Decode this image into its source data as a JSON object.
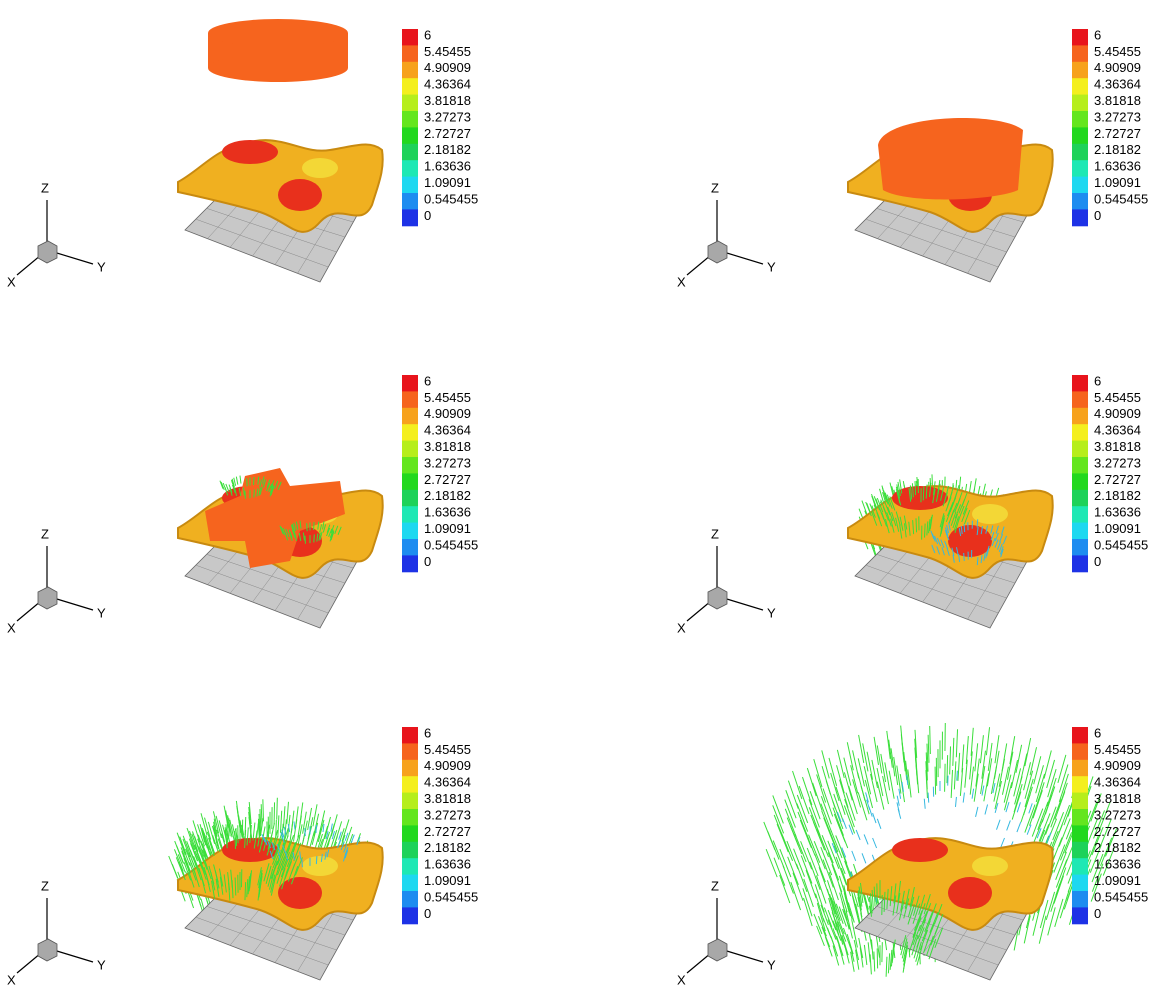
{
  "panels": [
    {
      "colorbar": {
        "labels": [
          6,
          5.45455,
          4.90909,
          4.36364,
          3.81818,
          3.27273,
          2.72727,
          2.18182,
          1.63636,
          1.09091,
          0.545455,
          0
        ],
        "colors": [
          "#e8141c",
          "#f6641e",
          "#f7a21c",
          "#f4ef1e",
          "#b6ee1c",
          "#64e61e",
          "#22d81e",
          "#1ed25a",
          "#1ee8b4",
          "#1ed8f0",
          "#1e8cf0",
          "#1e32e6"
        ]
      },
      "axes": {
        "x": "X",
        "y": "Y",
        "z": "Z"
      }
    },
    {
      "colorbar": {
        "labels": [
          6,
          5.45455,
          4.90909,
          4.36364,
          3.81818,
          3.27273,
          2.72727,
          2.18182,
          1.63636,
          1.09091,
          0.545455,
          0
        ],
        "colors": [
          "#e8141c",
          "#f6641e",
          "#f7a21c",
          "#f4ef1e",
          "#b6ee1c",
          "#64e61e",
          "#22d81e",
          "#1ed25a",
          "#1ee8b4",
          "#1ed8f0",
          "#1e8cf0",
          "#1e32e6"
        ]
      },
      "axes": {
        "x": "X",
        "y": "Y",
        "z": "Z"
      }
    },
    {
      "colorbar": {
        "labels": [
          6,
          5.45455,
          4.90909,
          4.36364,
          3.81818,
          3.27273,
          2.72727,
          2.18182,
          1.63636,
          1.09091,
          0.545455,
          0
        ],
        "colors": [
          "#e8141c",
          "#f6641e",
          "#f7a21c",
          "#f4ef1e",
          "#b6ee1c",
          "#64e61e",
          "#22d81e",
          "#1ed25a",
          "#1ee8b4",
          "#1ed8f0",
          "#1e8cf0",
          "#1e32e6"
        ]
      },
      "axes": {
        "x": "X",
        "y": "Y",
        "z": "Z"
      }
    },
    {
      "colorbar": {
        "labels": [
          6,
          5.45455,
          4.90909,
          4.36364,
          3.81818,
          3.27273,
          2.72727,
          2.18182,
          1.63636,
          1.09091,
          0.545455,
          0
        ],
        "colors": [
          "#e8141c",
          "#f6641e",
          "#f7a21c",
          "#f4ef1e",
          "#b6ee1c",
          "#64e61e",
          "#22d81e",
          "#1ed25a",
          "#1ee8b4",
          "#1ed8f0",
          "#1e8cf0",
          "#1e32e6"
        ]
      },
      "axes": {
        "x": "X",
        "y": "Y",
        "z": "Z"
      }
    },
    {
      "colorbar": {
        "labels": [
          6,
          5.45455,
          4.90909,
          4.36364,
          3.81818,
          3.27273,
          2.72727,
          2.18182,
          1.63636,
          1.09091,
          0.545455,
          0
        ],
        "colors": [
          "#e8141c",
          "#f6641e",
          "#f7a21c",
          "#f4ef1e",
          "#b6ee1c",
          "#64e61e",
          "#22d81e",
          "#1ed25a",
          "#1ee8b4",
          "#1ed8f0",
          "#1e8cf0",
          "#1e32e6"
        ]
      },
      "axes": {
        "x": "X",
        "y": "Y",
        "z": "Z"
      }
    },
    {
      "colorbar": {
        "labels": [
          6,
          5.45455,
          4.90909,
          4.36364,
          3.81818,
          3.27273,
          2.72727,
          2.18182,
          1.63636,
          1.09091,
          0.545455,
          0
        ],
        "colors": [
          "#e8141c",
          "#f6641e",
          "#f7a21c",
          "#f4ef1e",
          "#b6ee1c",
          "#64e61e",
          "#22d81e",
          "#1ed25a",
          "#1ee8b4",
          "#1ed8f0",
          "#1e8cf0",
          "#1e32e6"
        ]
      },
      "axes": {
        "x": "X",
        "y": "Y",
        "z": "Z"
      }
    }
  ]
}
